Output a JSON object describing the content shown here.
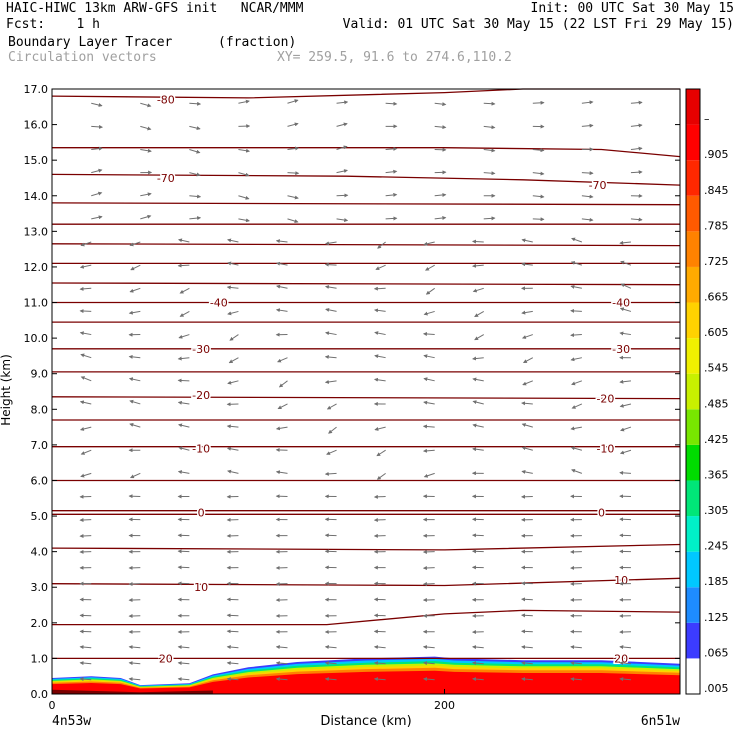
{
  "header": {
    "model_line": "HAIC-HIWC 13km ARW-GFS init   NCAR/MMM",
    "fcst_line": "Fcst:    1 h",
    "init_line": "Init: 00 UTC Sat 30 May 15",
    "valid_line": "Valid: 01 UTC Sat 30 May 15 (22 LST Fri 29 May 15)",
    "field_name": "Boundary Layer Tracer",
    "field_units": "(fraction)",
    "vector_name": "Circulation vectors",
    "xy_range": "XY= 259.5, 91.6 to 274.6,110.2"
  },
  "chart_data": {
    "type": "heatmap",
    "ylabel": "Height (km)",
    "xlabel": "Distance (km)",
    "ylim": [
      0,
      17
    ],
    "xlim": [
      0,
      320
    ],
    "yticks": [
      "0.0",
      "1.0",
      "2.0",
      "3.0",
      "4.0",
      "5.0",
      "6.0",
      "7.0",
      "8.0",
      "9.0",
      "10.0",
      "11.0",
      "12.0",
      "13.0",
      "14.0",
      "15.0",
      "16.0",
      "17.0"
    ],
    "xticks": [
      {
        "value": 0,
        "label": "0"
      },
      {
        "value": 200,
        "label": "200"
      }
    ],
    "x_endpoints": {
      "left": "4n53w",
      "right": "6n51w"
    },
    "colorbar": {
      "labels": [
        ".005",
        ".065",
        ".125",
        ".185",
        ".245",
        ".305",
        ".365",
        ".425",
        ".485",
        ".545",
        ".605",
        ".665",
        ".725",
        ".785",
        ".845",
        ".905",
        "–"
      ],
      "colors": [
        "#ffffff",
        "#3c3cff",
        "#1e8cff",
        "#00c8ff",
        "#00f0c8",
        "#00e678",
        "#00dc00",
        "#78e600",
        "#c8f000",
        "#f0f000",
        "#ffd200",
        "#ffaa00",
        "#ff8200",
        "#ff5a00",
        "#ff2800",
        "#ff0000",
        "#e60000"
      ]
    },
    "isotherm_labels": [
      {
        "text": "-80",
        "x": 58,
        "y": 16.7
      },
      {
        "text": "-70",
        "x": 58,
        "y": 14.5
      },
      {
        "text": "-70",
        "x": 278,
        "y": 14.3
      },
      {
        "text": "-40",
        "x": 85,
        "y": 11.0
      },
      {
        "text": "-40",
        "x": 290,
        "y": 11.0
      },
      {
        "text": "-30",
        "x": 76,
        "y": 9.7
      },
      {
        "text": "-30",
        "x": 290,
        "y": 9.7
      },
      {
        "text": "-20",
        "x": 76,
        "y": 8.4
      },
      {
        "text": "-20",
        "x": 282,
        "y": 8.3
      },
      {
        "text": "-10",
        "x": 76,
        "y": 6.9
      },
      {
        "text": "-10",
        "x": 282,
        "y": 6.9
      },
      {
        "text": "0",
        "x": 76,
        "y": 5.1
      },
      {
        "text": "0",
        "x": 280,
        "y": 5.1
      },
      {
        "text": "10",
        "x": 76,
        "y": 3.0
      },
      {
        "text": "10",
        "x": 290,
        "y": 3.2
      },
      {
        "text": "20",
        "x": 58,
        "y": 1.0
      },
      {
        "text": "20",
        "x": 290,
        "y": 1.0
      }
    ]
  }
}
